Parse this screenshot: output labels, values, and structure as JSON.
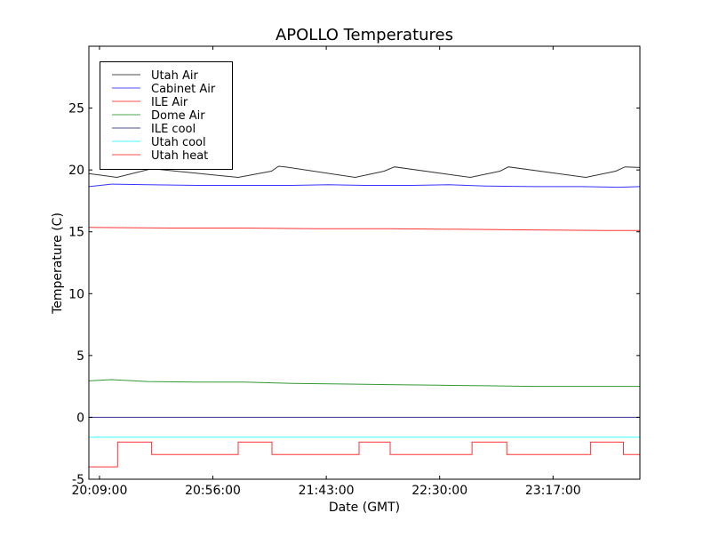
{
  "chart_data": {
    "type": "line",
    "title": "APOLLO Temperatures",
    "xlabel": "Date (GMT)",
    "ylabel": "Temperature (C)",
    "x_units": "minutes since 20:09:00 GMT",
    "xlim": [
      -4.4,
      224
    ],
    "ylim": [
      -5,
      30
    ],
    "xticks": [
      {
        "value": 0,
        "label": "20:09:00"
      },
      {
        "value": 47,
        "label": "20:56:00"
      },
      {
        "value": 94,
        "label": "21:43:00"
      },
      {
        "value": 141,
        "label": "22:30:00"
      },
      {
        "value": 188,
        "label": "23:17:00"
      }
    ],
    "yticks": [
      {
        "value": -5,
        "label": "-5"
      },
      {
        "value": 0,
        "label": "0"
      },
      {
        "value": 5,
        "label": "5"
      },
      {
        "value": 10,
        "label": "10"
      },
      {
        "value": 15,
        "label": "15"
      },
      {
        "value": 20,
        "label": "20"
      },
      {
        "value": 25,
        "label": "25"
      }
    ],
    "grid": false,
    "legend_position": "top-left",
    "series": [
      {
        "name": "Utah Air",
        "color": "#000000",
        "step": false,
        "points": [
          [
            -4.4,
            19.7
          ],
          [
            7.2,
            19.4
          ],
          [
            21.7,
            20.1
          ],
          [
            57.5,
            19.4
          ],
          [
            71.3,
            19.9
          ],
          [
            74.2,
            20.3
          ],
          [
            77,
            20.25
          ],
          [
            106,
            19.4
          ],
          [
            118,
            19.9
          ],
          [
            122.3,
            20.25
          ],
          [
            153.7,
            19.4
          ],
          [
            166,
            19.9
          ],
          [
            169.5,
            20.25
          ],
          [
            201.6,
            19.4
          ],
          [
            214,
            19.9
          ],
          [
            217.8,
            20.25
          ],
          [
            224,
            20.2
          ]
        ]
      },
      {
        "name": "Cabinet Air",
        "color": "#0000ff",
        "step": false,
        "points": [
          [
            -4.4,
            18.65
          ],
          [
            5,
            18.85
          ],
          [
            20,
            18.8
          ],
          [
            40,
            18.75
          ],
          [
            60,
            18.75
          ],
          [
            80,
            18.75
          ],
          [
            95,
            18.8
          ],
          [
            110,
            18.75
          ],
          [
            130,
            18.75
          ],
          [
            145,
            18.8
          ],
          [
            160,
            18.7
          ],
          [
            180,
            18.65
          ],
          [
            200,
            18.65
          ],
          [
            215,
            18.6
          ],
          [
            224,
            18.65
          ]
        ]
      },
      {
        "name": "ILE Air",
        "color": "#ff0000",
        "step": false,
        "points": [
          [
            -4.4,
            15.35
          ],
          [
            30,
            15.3
          ],
          [
            60,
            15.3
          ],
          [
            90,
            15.25
          ],
          [
            120,
            15.25
          ],
          [
            150,
            15.2
          ],
          [
            180,
            15.15
          ],
          [
            210,
            15.1
          ],
          [
            224,
            15.1
          ]
        ]
      },
      {
        "name": "Dome Air",
        "color": "#008000",
        "step": false,
        "points": [
          [
            -4.4,
            2.95
          ],
          [
            5,
            3.05
          ],
          [
            20,
            2.9
          ],
          [
            40,
            2.85
          ],
          [
            60,
            2.85
          ],
          [
            80,
            2.75
          ],
          [
            100,
            2.7
          ],
          [
            120,
            2.65
          ],
          [
            140,
            2.6
          ],
          [
            160,
            2.55
          ],
          [
            180,
            2.5
          ],
          [
            200,
            2.5
          ],
          [
            224,
            2.5
          ]
        ]
      },
      {
        "name": "ILE cool",
        "color": "#000080",
        "step": false,
        "points": [
          [
            -4.4,
            0
          ],
          [
            224,
            0
          ]
        ]
      },
      {
        "name": "Utah cool",
        "color": "#00ffff",
        "step": false,
        "points": [
          [
            -4.4,
            -1.6
          ],
          [
            224,
            -1.6
          ]
        ]
      },
      {
        "name": "Utah heat",
        "color": "#ff0000",
        "step": true,
        "points": [
          [
            -4.4,
            -4
          ],
          [
            7.5,
            -2
          ],
          [
            21.6,
            -3
          ],
          [
            57.5,
            -2
          ],
          [
            71.5,
            -3
          ],
          [
            107.6,
            -2
          ],
          [
            120.5,
            -3
          ],
          [
            154.4,
            -2
          ],
          [
            168.8,
            -3
          ],
          [
            203.5,
            -2
          ],
          [
            217.2,
            -3
          ],
          [
            224,
            -3
          ]
        ]
      }
    ]
  }
}
